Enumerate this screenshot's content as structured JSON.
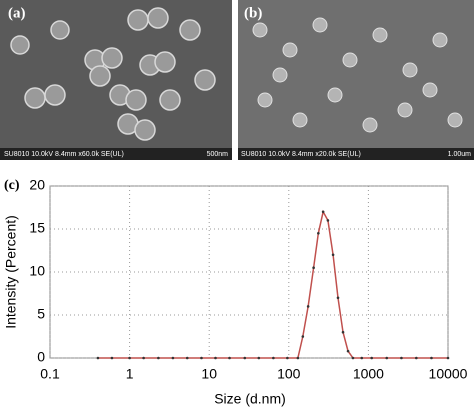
{
  "panels": [
    {
      "label": "(a)",
      "caption": "SU8010 10.0kV 8.4mm x60.0k SE(UL)",
      "scale": "500nm"
    },
    {
      "label": "(b)",
      "caption": "SU8010 10.0kV 8.4mm x20.0k SE(UL)",
      "scale": "1.00um"
    }
  ],
  "chart_data": {
    "type": "line",
    "panel_label": "(c)",
    "x_label": "Size (d.nm)",
    "y_label": "Intensity (Percent)",
    "log_x": true,
    "grid": true,
    "xlim": [
      0.1,
      10000
    ],
    "xticks": [
      0.1,
      1,
      10,
      100,
      1000,
      10000
    ],
    "ylim": [
      0,
      20
    ],
    "yticks": [
      0,
      5,
      10,
      15,
      20
    ],
    "series": [
      {
        "name": "Intensity",
        "color": "#c0504d",
        "x": [
          0.4,
          0.6,
          1,
          1.5,
          2.3,
          3.5,
          5.3,
          8,
          12,
          18,
          28,
          42,
          64,
          96,
          130,
          150,
          175,
          205,
          235,
          270,
          310,
          360,
          415,
          480,
          555,
          640,
          825,
          1100,
          1700,
          2600,
          4000,
          6200,
          10000
        ],
        "values": [
          0,
          0,
          0,
          0,
          0,
          0,
          0,
          0,
          0,
          0,
          0,
          0,
          0,
          0,
          0,
          2.5,
          6,
          10.5,
          14.5,
          17,
          16,
          12,
          7,
          3,
          0.8,
          0,
          0,
          0,
          0,
          0,
          0,
          0,
          0
        ]
      }
    ]
  }
}
